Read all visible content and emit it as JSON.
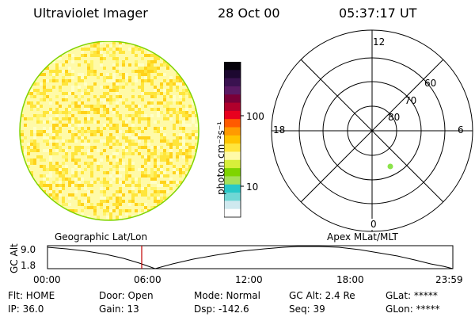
{
  "header": {
    "instrument": "Ultraviolet Imager",
    "date": "28 Oct 00",
    "time": "05:37:17 UT"
  },
  "colorbar": {
    "unit_label": "photon cm⁻²s⁻¹",
    "ticks": [
      "100",
      "10"
    ],
    "colors": [
      "#ffffff",
      "#cfe9ef",
      "#6fd7d5",
      "#28c8c8",
      "#a5e05a",
      "#7fd400",
      "#d8ef3a",
      "#fffaa8",
      "#ffe53c",
      "#ffc400",
      "#ff9a00",
      "#ff5a00",
      "#e8001e",
      "#b0002c",
      "#7a0038",
      "#5a1a64",
      "#3a1250",
      "#1d0830",
      "#05020a"
    ]
  },
  "polar_grid": {
    "lat_labels": [
      "60",
      "70",
      "80"
    ],
    "mlt_labels": [
      "12",
      "18",
      "6",
      "0"
    ],
    "marker_color": "#8be34a"
  },
  "altitude_panel": {
    "axis_title": "GC Alt",
    "y_ticks": [
      "9.0",
      "1.8"
    ],
    "left_label": "Geographic Lat/Lon",
    "right_label": "Apex MLat/MLT",
    "x_ticks": [
      "00:00",
      "06:00",
      "12:00",
      "18:00",
      "23:59"
    ],
    "current_time_marker": "05:37",
    "marker_color": "#c00000"
  },
  "info": {
    "flt": "Flt: HOME",
    "ip": "IP: 36.0",
    "door": "Door: Open",
    "gain": "Gain: 13",
    "mode": "Mode: Normal",
    "dsp": "Dsp: -142.6",
    "gc_alt": "GC Alt: 2.4 Re",
    "seq": "Seq: 39",
    "glat": "GLat: *****",
    "glon": "GLon: *****"
  }
}
